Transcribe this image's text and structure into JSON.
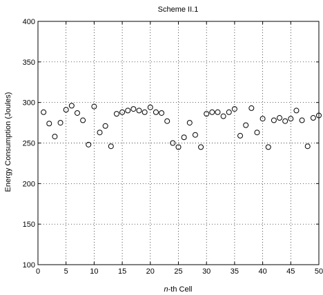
{
  "chart_data": {
    "type": "scatter",
    "title": "Scheme II.1",
    "xlabel_prefix": "n",
    "xlabel_suffix": "-th Cell",
    "ylabel": "Energy Consumption (Joules)",
    "xlim": [
      0,
      50
    ],
    "ylim": [
      100,
      400
    ],
    "xticks": [
      0,
      5,
      10,
      15,
      20,
      25,
      30,
      35,
      40,
      45,
      50
    ],
    "yticks": [
      100,
      150,
      200,
      250,
      300,
      350,
      400
    ],
    "grid": true,
    "marker": "open-circle",
    "x": [
      1,
      2,
      3,
      4,
      5,
      6,
      7,
      8,
      9,
      10,
      11,
      12,
      13,
      14,
      15,
      16,
      17,
      18,
      19,
      20,
      21,
      22,
      23,
      24,
      25,
      26,
      27,
      28,
      29,
      30,
      31,
      32,
      33,
      34,
      35,
      36,
      37,
      38,
      39,
      40,
      41,
      42,
      43,
      44,
      45,
      46,
      47,
      48,
      49,
      50
    ],
    "y": [
      288,
      274,
      258,
      275,
      291,
      296,
      287,
      278,
      248,
      295,
      263,
      271,
      246,
      286,
      288,
      290,
      292,
      290,
      288,
      294,
      288,
      287,
      277,
      250,
      245,
      257,
      275,
      260,
      245,
      286,
      288,
      288,
      283,
      288,
      292,
      259,
      272,
      293,
      263,
      280,
      245,
      278,
      281,
      277,
      280,
      290,
      278,
      246,
      281,
      284
    ]
  }
}
